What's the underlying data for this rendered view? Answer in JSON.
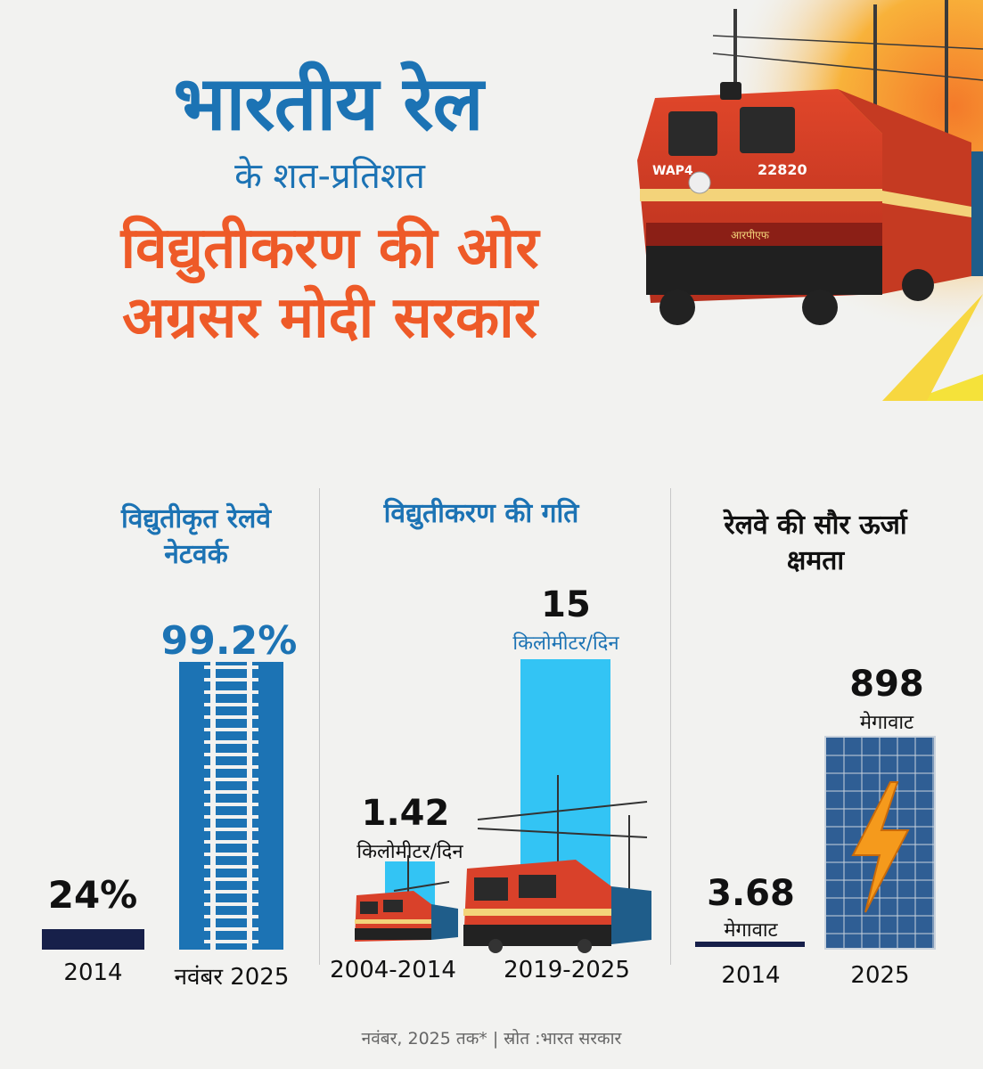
{
  "header": {
    "line1": "भारतीय रेल",
    "line2": "के शत-प्रतिशत",
    "line3": "विद्युतीकरण की ओर",
    "line4": "अग्रसर मोदी सरकार"
  },
  "train": {
    "label": "WAP4",
    "number": "22820",
    "plate": "आरपीएफ"
  },
  "colors": {
    "blue": "#1c73b4",
    "orange": "#ee5a28",
    "navy": "#17204a",
    "cyan": "#33c4f4"
  },
  "chart_data": [
    {
      "type": "bar",
      "title": "विद्युतीकृत रेलवे नेटवर्क",
      "categories": [
        "2014",
        "नवंबर 2025"
      ],
      "values": [
        24,
        99.2
      ],
      "value_labels": [
        "24%",
        "99.2%"
      ],
      "unit": "%",
      "ylim": [
        0,
        100
      ]
    },
    {
      "type": "bar",
      "title": "विद्युतीकरण की गति",
      "categories": [
        "2004-2014",
        "2019-2025"
      ],
      "values": [
        1.42,
        15
      ],
      "value_labels": [
        "1.42",
        "15"
      ],
      "unit": "किलोमीटर/दिन",
      "ylim": [
        0,
        15
      ]
    },
    {
      "type": "bar",
      "title": "रेलवे की सौर ऊर्जा क्षमता",
      "categories": [
        "2014",
        "2025"
      ],
      "values": [
        3.68,
        898
      ],
      "value_labels": [
        "3.68",
        "898"
      ],
      "unit": "मेगावाट",
      "ylim": [
        0,
        898
      ]
    }
  ],
  "footer": "नवंबर, 2025 तक* | स्रोत :भारत सरकार"
}
